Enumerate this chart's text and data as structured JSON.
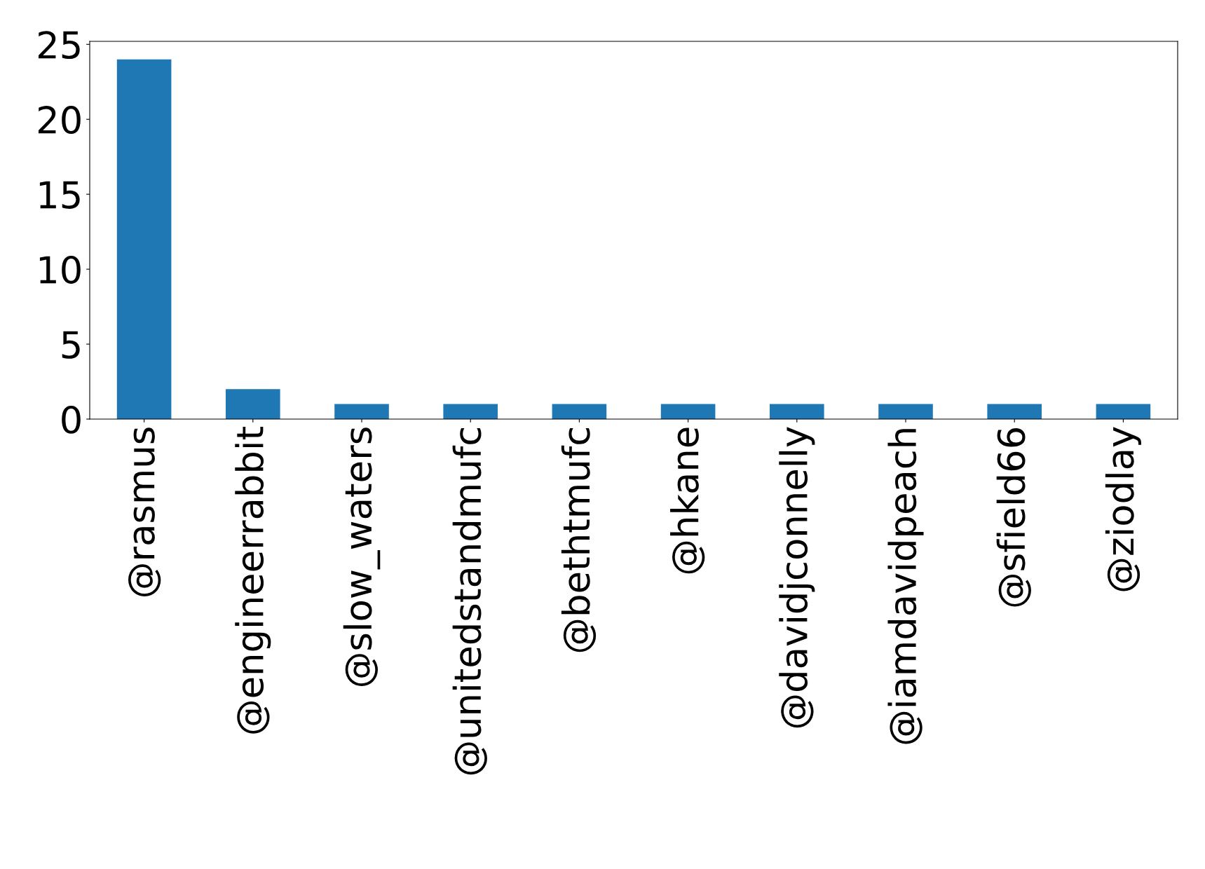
{
  "chart_data": {
    "type": "bar",
    "categories": [
      "@rasmus",
      "@engineerrabbit",
      "@slow_waters",
      "@unitedstandmufc",
      "@bethtmufc",
      "@hkane",
      "@davidjconnelly",
      "@iamdavidpeach",
      "@sfield66",
      "@ziodlay"
    ],
    "values": [
      24,
      2,
      1,
      1,
      1,
      1,
      1,
      1,
      1,
      1
    ],
    "color": "#1f77b4",
    "ylim": [
      0,
      25.2
    ],
    "yticks": [
      0,
      5,
      10,
      15,
      20,
      25
    ],
    "grid": false
  }
}
